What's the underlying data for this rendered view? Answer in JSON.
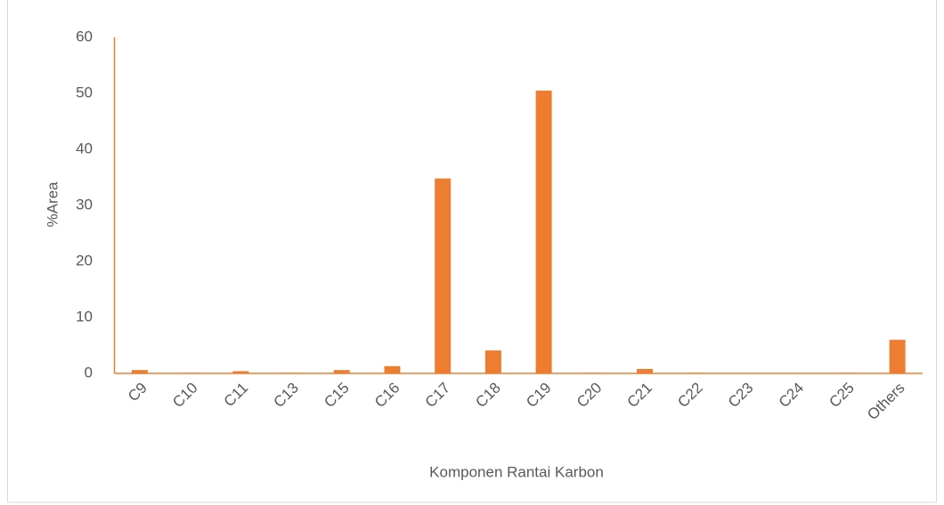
{
  "chart_data": {
    "type": "bar",
    "categories": [
      "C9",
      "C10",
      "C11",
      "C13",
      "C15",
      "C16",
      "C17",
      "C18",
      "C19",
      "C20",
      "C21",
      "C22",
      "C23",
      "C24",
      "C25",
      "Others"
    ],
    "values": [
      0.6,
      0.1,
      0.4,
      0.1,
      0.6,
      1.3,
      34.8,
      4.1,
      50.5,
      0.1,
      0.8,
      0.1,
      0.05,
      0.05,
      0.1,
      6.0
    ],
    "color": "#ed7d31",
    "ylim": [
      0,
      60
    ],
    "yticks": [
      0,
      10,
      20,
      30,
      40,
      50,
      60
    ],
    "x_label": "Komponen Rantai Karbon",
    "y_label": "%Area",
    "grid": false
  }
}
